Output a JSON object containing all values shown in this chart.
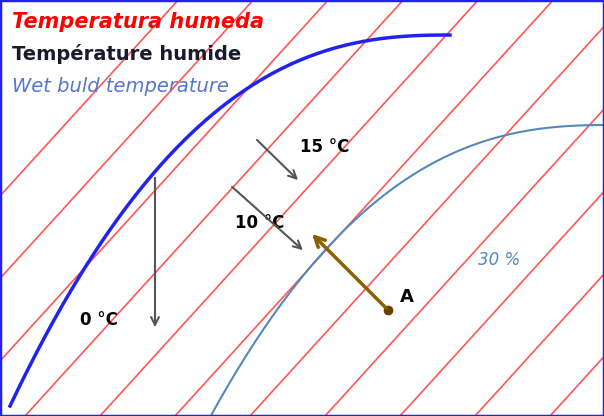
{
  "title_line1": "Temperatura humeda",
  "title_line2": "Température humide",
  "title_line3": "Wet buld temperature",
  "title_color1": "#FF0000",
  "title_color2": "#1a1a2e",
  "title_color3": "#5577CC",
  "bg_color": "#FFFFFF",
  "sat_curve_color": "#2222EE",
  "rh_curve_color": "#5588BB",
  "wet_bulb_line_color": "#FF4444",
  "arrow_color": "#8B6000",
  "point_color": "#6B4000",
  "label_0C": "0 °C",
  "label_10C": "10 °C",
  "label_15C": "15 °C",
  "label_30": "30 %",
  "label_A": "A",
  "figsize": [
    6.04,
    4.16
  ],
  "dpi": 100
}
